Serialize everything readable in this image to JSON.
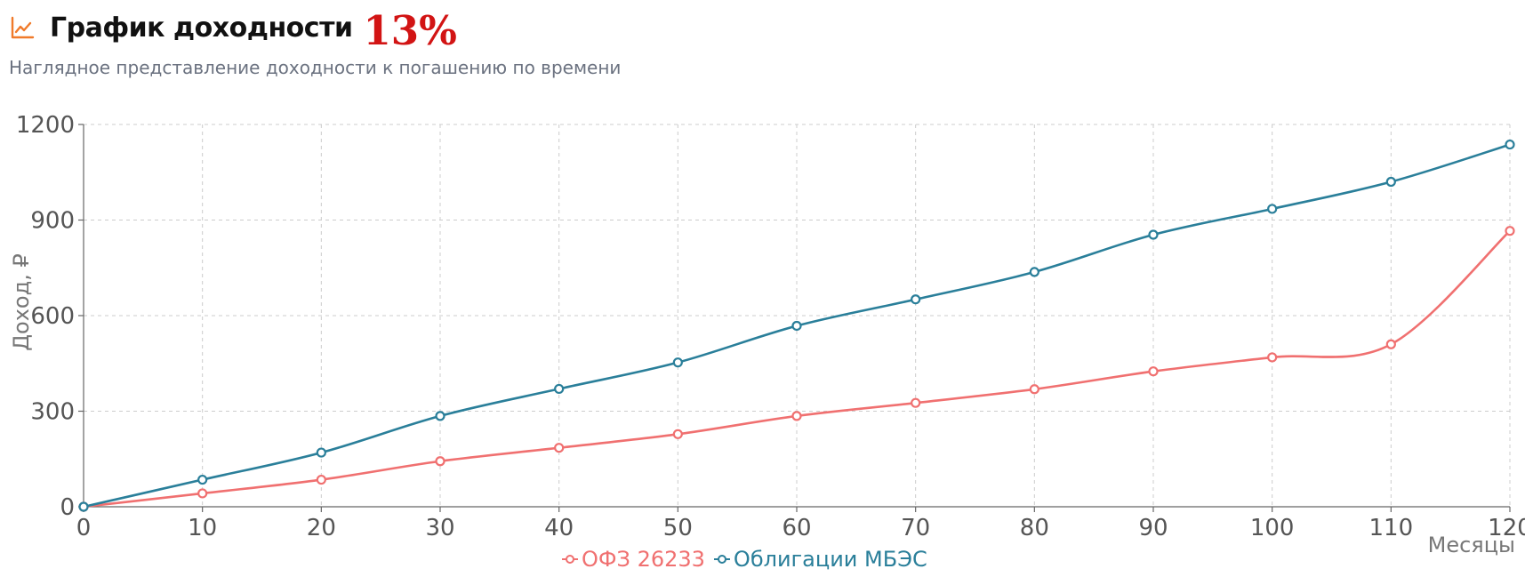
{
  "header": {
    "icon": "line-chart-icon",
    "title": "График доходности",
    "yield_badge": "13%",
    "subtitle": "Наглядное представление доходности к погашению по времени"
  },
  "colors": {
    "icon": "#f07a2a",
    "series_1": "#f07070",
    "series_2": "#2a7f9a",
    "grid": "#cccccc",
    "axis": "#666666",
    "badge": "#d21414"
  },
  "chart_data": {
    "type": "line",
    "xlabel": "Месяцы",
    "ylabel": "Доход, ₽",
    "xlim": [
      0,
      120
    ],
    "ylim": [
      0,
      1200
    ],
    "x_ticks": [
      0,
      10,
      20,
      30,
      40,
      50,
      60,
      70,
      80,
      90,
      100,
      110,
      120
    ],
    "y_ticks": [
      0,
      300,
      600,
      900,
      1200
    ],
    "grid": true,
    "legend_position": "bottom-center",
    "x": [
      0,
      10,
      20,
      30,
      40,
      50,
      60,
      70,
      80,
      90,
      100,
      110,
      120
    ],
    "series": [
      {
        "name": "ОФЗ 26233",
        "values": [
          0,
          42,
          85,
          143,
          185,
          228,
          285,
          326,
          369,
          425,
          469,
          510,
          866
        ]
      },
      {
        "name": "Облигации МБЭС",
        "values": [
          0,
          85,
          170,
          285,
          370,
          453,
          568,
          651,
          737,
          854,
          935,
          1020,
          1137
        ]
      }
    ]
  }
}
